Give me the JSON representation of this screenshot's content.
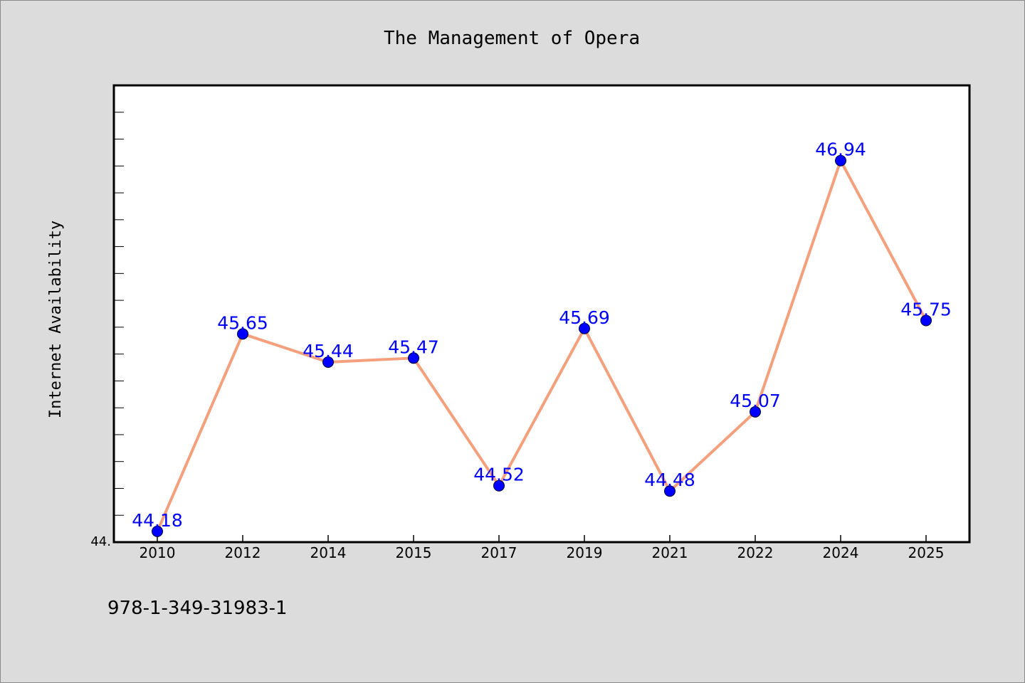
{
  "chart_data": {
    "type": "line",
    "title": "The Management of Opera",
    "xlabel": "",
    "ylabel": "Internet Availability",
    "categories": [
      "2010",
      "2012",
      "2014",
      "2015",
      "2017",
      "2019",
      "2021",
      "2022",
      "2024",
      "2025"
    ],
    "series": [
      {
        "values": [
          44.18,
          45.65,
          45.44,
          45.47,
          44.52,
          45.69,
          44.48,
          45.07,
          46.94,
          45.75
        ],
        "data_labels": [
          "44.18",
          "45.65",
          "45.44",
          "45.47",
          "44.52",
          "45.69",
          "44.48",
          "45.07",
          "46.94",
          "45.75"
        ]
      }
    ],
    "ylim": [
      44.1,
      47.5
    ],
    "y_tick_labels": [
      "44."
    ],
    "grid": false,
    "legend": "none",
    "line_color": "#f4a07c",
    "marker_color": "#0000ff",
    "label_color": "#0000ff"
  },
  "footer": {
    "isbn": "978-1-349-31983-1"
  }
}
